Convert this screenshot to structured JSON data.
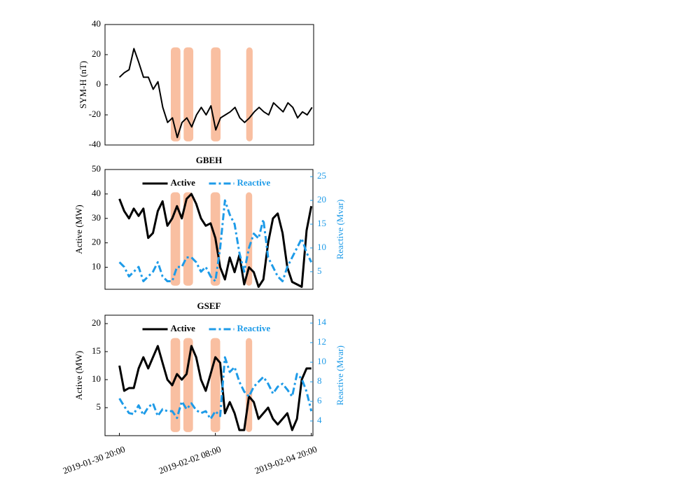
{
  "chart_data": [
    {
      "type": "line",
      "ylabel": "SYM-H (nT)",
      "xlim": [
        "2019-01-30 11:00",
        "2019-02-04 21:00"
      ],
      "ylim": [
        -40,
        40
      ],
      "yticks": [
        -40,
        -20,
        0,
        20,
        40
      ],
      "shaded_spans": [
        [
          "2019-02-01 04:00",
          "2019-02-01 10:00"
        ],
        [
          "2019-02-01 12:00",
          "2019-02-01 18:00"
        ],
        [
          "2019-02-02 05:00",
          "2019-02-02 11:00"
        ],
        [
          "2019-02-03 03:00",
          "2019-02-03 07:00"
        ]
      ],
      "shade_color": "#f9bfa1",
      "x": [
        "2019-01-30 20:00",
        "2019-01-30 23:00",
        "2019-01-31 02:00",
        "2019-01-31 05:00",
        "2019-01-31 08:00",
        "2019-01-31 11:00",
        "2019-01-31 14:00",
        "2019-01-31 17:00",
        "2019-01-31 20:00",
        "2019-01-31 23:00",
        "2019-02-01 02:00",
        "2019-02-01 05:00",
        "2019-02-01 08:00",
        "2019-02-01 11:00",
        "2019-02-01 14:00",
        "2019-02-01 17:00",
        "2019-02-01 20:00",
        "2019-02-01 23:00",
        "2019-02-02 02:00",
        "2019-02-02 05:00",
        "2019-02-02 08:00",
        "2019-02-02 11:00",
        "2019-02-02 14:00",
        "2019-02-02 17:00",
        "2019-02-02 20:00",
        "2019-02-02 23:00",
        "2019-02-03 02:00",
        "2019-02-03 05:00",
        "2019-02-03 08:00",
        "2019-02-03 11:00",
        "2019-02-03 14:00",
        "2019-02-03 17:00",
        "2019-02-03 20:00",
        "2019-02-03 23:00",
        "2019-02-04 02:00",
        "2019-02-04 05:00",
        "2019-02-04 08:00",
        "2019-02-04 11:00",
        "2019-02-04 14:00",
        "2019-02-04 17:00",
        "2019-02-04 20:00"
      ],
      "series": [
        {
          "color": "#000000",
          "values": [
            5,
            8,
            10,
            24,
            15,
            5,
            5,
            -3,
            2,
            -15,
            -25,
            -22,
            -35,
            -25,
            -22,
            -28,
            -20,
            -15,
            -20,
            -14,
            -30,
            -22,
            -20,
            -18,
            -15,
            -22,
            -25,
            -22,
            -18,
            -15,
            -18,
            -20,
            -12,
            -15,
            -18,
            -12,
            -15,
            -22,
            -18,
            -20,
            -15
          ]
        }
      ]
    },
    {
      "type": "line",
      "title": "GBEH",
      "ylabel": "Active (MW)",
      "y2label": "Reactive (Mvar)",
      "xlim": [
        "2019-01-30 11:00",
        "2019-02-04 21:00"
      ],
      "ylim": [
        1,
        50
      ],
      "yticks": [
        10,
        20,
        30,
        40,
        50
      ],
      "y2lim": [
        1.3,
        26.5
      ],
      "y2ticks": [
        5,
        10,
        15,
        20,
        25
      ],
      "legend": "upper center",
      "shaded_spans": [
        [
          "2019-02-01 04:00",
          "2019-02-01 10:00"
        ],
        [
          "2019-02-01 12:00",
          "2019-02-01 18:00"
        ],
        [
          "2019-02-02 05:00",
          "2019-02-02 11:00"
        ],
        [
          "2019-02-03 03:00",
          "2019-02-03 07:00"
        ]
      ],
      "shade_color": "#f9bfa1",
      "x": [
        "2019-01-30 20:00",
        "2019-01-30 23:00",
        "2019-01-31 02:00",
        "2019-01-31 05:00",
        "2019-01-31 08:00",
        "2019-01-31 11:00",
        "2019-01-31 14:00",
        "2019-01-31 17:00",
        "2019-01-31 20:00",
        "2019-01-31 23:00",
        "2019-02-01 02:00",
        "2019-02-01 05:00",
        "2019-02-01 08:00",
        "2019-02-01 11:00",
        "2019-02-01 14:00",
        "2019-02-01 17:00",
        "2019-02-01 20:00",
        "2019-02-01 23:00",
        "2019-02-02 02:00",
        "2019-02-02 05:00",
        "2019-02-02 08:00",
        "2019-02-02 11:00",
        "2019-02-02 14:00",
        "2019-02-02 17:00",
        "2019-02-02 20:00",
        "2019-02-02 23:00",
        "2019-02-03 02:00",
        "2019-02-03 05:00",
        "2019-02-03 08:00",
        "2019-02-03 11:00",
        "2019-02-03 14:00",
        "2019-02-03 17:00",
        "2019-02-03 20:00",
        "2019-02-03 23:00",
        "2019-02-04 02:00",
        "2019-02-04 05:00",
        "2019-02-04 08:00",
        "2019-02-04 11:00",
        "2019-02-04 14:00",
        "2019-02-04 17:00",
        "2019-02-04 20:00"
      ],
      "series": [
        {
          "name": "Active",
          "color": "#000000",
          "values": [
            38,
            33,
            30,
            34,
            31,
            34,
            22,
            24,
            33,
            37,
            27,
            30,
            35,
            30,
            38,
            40,
            36,
            30,
            27,
            28,
            22,
            10,
            5,
            14,
            8,
            15,
            3,
            10,
            8,
            2,
            5,
            20,
            30,
            32,
            24,
            10,
            4,
            3,
            2,
            25,
            35
          ]
        },
        {
          "name": "Reactive",
          "color": "#1e9be8",
          "axis": "y2",
          "values": [
            7,
            6,
            4,
            5,
            6,
            3,
            4,
            5,
            7,
            4,
            3,
            3,
            6,
            6,
            8,
            8,
            7,
            5,
            6,
            4,
            3,
            10,
            20,
            17,
            15,
            9,
            5,
            10,
            13,
            12,
            16,
            8,
            6,
            4,
            3,
            6,
            8,
            10,
            12,
            9,
            7
          ]
        }
      ]
    },
    {
      "type": "line",
      "title": "GSEF",
      "ylabel": "Active (MW)",
      "y2label": "Reactive (Mvar)",
      "xlim": [
        "2019-01-30 11:00",
        "2019-02-04 21:00"
      ],
      "xticks": [
        "2019-01-30 20:00",
        "2019-02-02 08:00",
        "2019-02-04 20:00"
      ],
      "ylim": [
        0,
        21.5
      ],
      "yticks": [
        5,
        10,
        15,
        20
      ],
      "y2lim": [
        2.5,
        14.8
      ],
      "y2ticks": [
        4,
        6,
        8,
        10,
        12,
        14
      ],
      "legend": "upper center",
      "shaded_spans": [
        [
          "2019-02-01 04:00",
          "2019-02-01 10:00"
        ],
        [
          "2019-02-01 12:00",
          "2019-02-01 18:00"
        ],
        [
          "2019-02-02 05:00",
          "2019-02-02 11:00"
        ],
        [
          "2019-02-03 03:00",
          "2019-02-03 07:00"
        ]
      ],
      "shade_color": "#f9bfa1",
      "x": [
        "2019-01-30 20:00",
        "2019-01-30 23:00",
        "2019-01-31 02:00",
        "2019-01-31 05:00",
        "2019-01-31 08:00",
        "2019-01-31 11:00",
        "2019-01-31 14:00",
        "2019-01-31 17:00",
        "2019-01-31 20:00",
        "2019-01-31 23:00",
        "2019-02-01 02:00",
        "2019-02-01 05:00",
        "2019-02-01 08:00",
        "2019-02-01 11:00",
        "2019-02-01 14:00",
        "2019-02-01 17:00",
        "2019-02-01 20:00",
        "2019-02-01 23:00",
        "2019-02-02 02:00",
        "2019-02-02 05:00",
        "2019-02-02 08:00",
        "2019-02-02 11:00",
        "2019-02-02 14:00",
        "2019-02-02 17:00",
        "2019-02-02 20:00",
        "2019-02-02 23:00",
        "2019-02-03 02:00",
        "2019-02-03 05:00",
        "2019-02-03 08:00",
        "2019-02-03 11:00",
        "2019-02-03 14:00",
        "2019-02-03 17:00",
        "2019-02-03 20:00",
        "2019-02-03 23:00",
        "2019-02-04 02:00",
        "2019-02-04 05:00",
        "2019-02-04 08:00",
        "2019-02-04 11:00",
        "2019-02-04 14:00",
        "2019-02-04 17:00",
        "2019-02-04 20:00"
      ],
      "series": [
        {
          "name": "Active",
          "color": "#000000",
          "values": [
            12.5,
            8,
            8.5,
            8.5,
            12,
            14,
            12,
            14,
            16,
            13,
            10,
            9,
            11,
            10,
            11,
            16,
            14,
            10,
            8,
            11,
            14,
            13,
            4,
            6,
            4,
            1,
            1,
            7,
            6,
            3,
            4,
            5,
            3,
            2,
            3,
            4,
            1,
            3,
            10,
            12,
            12
          ]
        },
        {
          "name": "Reactive",
          "color": "#1e9be8",
          "axis": "y2",
          "values": [
            6.3,
            5.5,
            4.8,
            4.7,
            5.6,
            4.6,
            5.4,
            5.8,
            4.5,
            5.2,
            5,
            5,
            4.3,
            6,
            5.2,
            5.8,
            5.1,
            4.8,
            5,
            4.2,
            5,
            4.5,
            10.5,
            9,
            9.5,
            8,
            7,
            6.5,
            7.5,
            8,
            8.5,
            7.8,
            6.8,
            7.5,
            7.8,
            7.2,
            6.5,
            8.8,
            8.3,
            7,
            5
          ]
        }
      ]
    }
  ]
}
